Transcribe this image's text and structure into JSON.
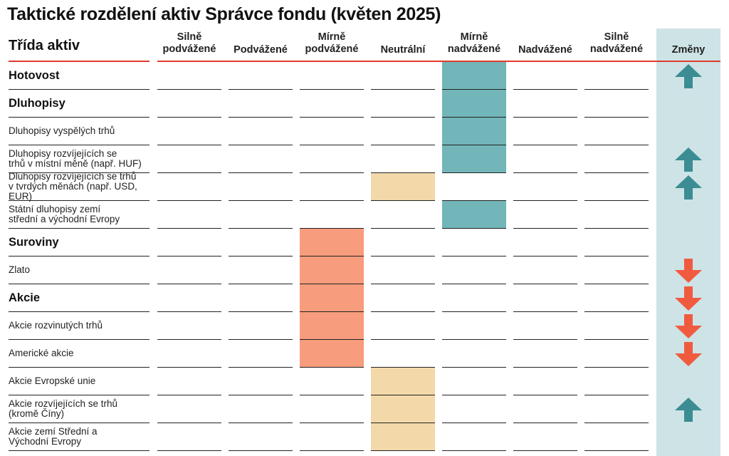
{
  "title": "Taktické rozdělení aktiv Správce fondu (květen 2025)",
  "asset_class_header": "Třída aktiv",
  "changes_header": "Změny",
  "colors": {
    "overweight_teal": "#72b6b9",
    "neutral_sand": "#f3d9a9",
    "underweight_salmon": "#f79c7c",
    "changes_background": "#cde3e6",
    "arrow_up": "#3b8d93",
    "arrow_down": "#f05b3f",
    "header_rule": "#e03a2e"
  },
  "chart_data": {
    "type": "table",
    "columns": [
      "Silně\npodvážené",
      "Podvážené",
      "Mírně\npodvážené",
      "Neutrální",
      "Mírně\nnadvážené",
      "Nadvážené",
      "Silně\nnadvážené"
    ],
    "rows": [
      {
        "label": "Hotovost",
        "bold": true,
        "position": "Mírně nadvážené",
        "change": "up"
      },
      {
        "label": "Dluhopisy",
        "bold": true,
        "position": "Mírně nadvážené",
        "change": ""
      },
      {
        "label": "Dluhopisy vyspělých trhů",
        "bold": false,
        "position": "Mírně nadvážené",
        "change": ""
      },
      {
        "label": "Dluhopisy rozvíjejících se\ntrhů v místní měně (např. HUF)",
        "bold": false,
        "position": "Mírně nadvážené",
        "change": "up"
      },
      {
        "label": "Dluhopisy rozvíjejících se trhů\nv tvrdých měnách (např. USD, EUR)",
        "bold": false,
        "position": "Neutrální",
        "change": "up"
      },
      {
        "label": "Státní dluhopisy zemí\nstřední a východní Evropy",
        "bold": false,
        "position": "Mírně nadvážené",
        "change": ""
      },
      {
        "label": "Suroviny",
        "bold": true,
        "position": "Mírně podvážené",
        "change": ""
      },
      {
        "label": "Zlato",
        "bold": false,
        "position": "Mírně podvážené",
        "change": "down"
      },
      {
        "label": "Akcie",
        "bold": true,
        "position": "Mírně podvážené",
        "change": "down"
      },
      {
        "label": "Akcie rozvinutých trhů",
        "bold": false,
        "position": "Mírně podvážené",
        "change": "down"
      },
      {
        "label": "Americké akcie",
        "bold": false,
        "position": "Mírně podvážené",
        "change": "down"
      },
      {
        "label": "Akcie Evropské unie",
        "bold": false,
        "position": "Neutrální",
        "change": ""
      },
      {
        "label": "Akcie rozvíjejících se trhů\n(kromě Číny)",
        "bold": false,
        "position": "Neutrální",
        "change": "up"
      },
      {
        "label": "Akcie zemí Střední a\nVýchodní Evropy",
        "bold": false,
        "position": "Neutrální",
        "change": ""
      }
    ]
  }
}
